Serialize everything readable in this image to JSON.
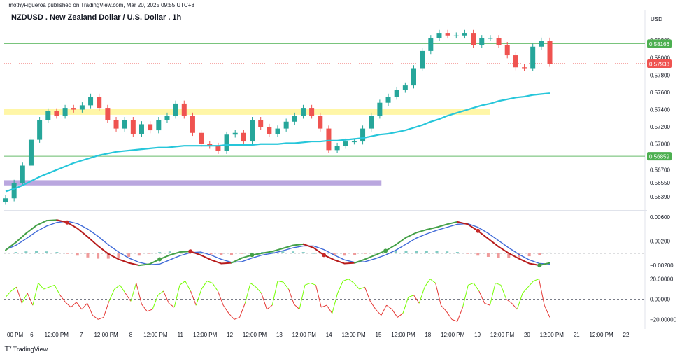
{
  "header": {
    "published": "TimothyFigueroa published on TradingView.com, Mar 20, 2025 09:55 UTC+8",
    "title": "NZDUSD . New Zealand Dollar / U.S. Dollar . 1h",
    "currency": "USD"
  },
  "footer": {
    "brand": "TradingView",
    "logo_icon": "tradingview-logo-icon"
  },
  "colors": {
    "up": "#26a69a",
    "down": "#ef5350",
    "ma": "#26c6da",
    "level": "#66bb6a",
    "zone_yellow": "#fff59d",
    "zone_purple": "#b39ddb",
    "osc_fast": "#43a047",
    "osc_fast_down": "#b71c1c",
    "osc_slow": "#3f6ad8",
    "rsi_up": "#76ff03",
    "rsi_down": "#e53935"
  },
  "chart_data": [
    {
      "type": "line",
      "name": "price",
      "x_labels": [
        "00 PM",
        "6",
        "12:00 PM",
        "7",
        "12:00 PM",
        "8",
        "12:00 PM",
        "11",
        "12:00 PM",
        "12",
        "12:00 PM",
        "13",
        "12:00 PM",
        "14",
        "12:00 PM",
        "15",
        "12:00 PM",
        "18",
        "12:00 PM",
        "19",
        "12:00 PM",
        "20",
        "12:00 PM",
        "21",
        "12:00 PM",
        "22"
      ],
      "y_ticks": [
        0.5639,
        0.5655,
        0.567,
        0.57,
        0.572,
        0.574,
        0.576,
        0.578,
        0.58,
        0.582
      ],
      "y_tick_labels": [
        "0.56390",
        "0.56550",
        "0.56700",
        "0.57000",
        "0.57200",
        "0.57400",
        "0.57600",
        "0.57800",
        "0.58000",
        "0.58200"
      ],
      "ylim": [
        0.5625,
        0.5838
      ],
      "close": [
        0.5637,
        0.5655,
        0.5675,
        0.5705,
        0.5728,
        0.5738,
        0.5733,
        0.5742,
        0.574,
        0.5745,
        0.5755,
        0.5742,
        0.5728,
        0.5718,
        0.5728,
        0.5712,
        0.5723,
        0.5716,
        0.5728,
        0.5733,
        0.5747,
        0.5733,
        0.5713,
        0.57,
        0.5698,
        0.5692,
        0.5711,
        0.5713,
        0.5703,
        0.5728,
        0.572,
        0.5712,
        0.5718,
        0.5726,
        0.5733,
        0.5742,
        0.5733,
        0.5718,
        0.5693,
        0.5698,
        0.5703,
        0.5703,
        0.5718,
        0.5733,
        0.5748,
        0.5755,
        0.5763,
        0.5768,
        0.5788,
        0.5808,
        0.5823,
        0.5829,
        0.5826,
        0.5826,
        0.5829,
        0.5815,
        0.5823,
        0.5823,
        0.5815,
        0.5803,
        0.5789,
        0.5788,
        0.5813,
        0.582,
        0.5793
      ],
      "ma": [
        0.5645,
        0.5648,
        0.5652,
        0.5657,
        0.5662,
        0.5666,
        0.567,
        0.5674,
        0.5678,
        0.5681,
        0.5684,
        0.5687,
        0.5689,
        0.5691,
        0.5692,
        0.5693,
        0.5694,
        0.5695,
        0.5696,
        0.5696,
        0.5697,
        0.5698,
        0.5698,
        0.5698,
        0.5698,
        0.5698,
        0.5699,
        0.5699,
        0.5699,
        0.5699,
        0.57,
        0.57,
        0.57,
        0.5701,
        0.5701,
        0.5702,
        0.5703,
        0.5703,
        0.5704,
        0.5704,
        0.5705,
        0.5706,
        0.5707,
        0.5709,
        0.5711,
        0.5712,
        0.5714,
        0.5716,
        0.5719,
        0.5722,
        0.5726,
        0.5729,
        0.5733,
        0.5736,
        0.5739,
        0.5742,
        0.5745,
        0.5747,
        0.575,
        0.5752,
        0.5754,
        0.5755,
        0.5757,
        0.5758,
        0.5759
      ],
      "levels": [
        {
          "value": 0.58166,
          "label": "0.58166",
          "color": "#66bb6a"
        },
        {
          "value": 0.56859,
          "label": "0.56859",
          "color": "#66bb6a"
        }
      ],
      "last_price": {
        "value": 0.57933,
        "label": "0.57933",
        "color": "#ef5350"
      },
      "zones": [
        {
          "name": "resistance-zone",
          "from": 0.5734,
          "to": 0.5741,
          "start": 0,
          "end": 0.76,
          "color": "#fff59d"
        },
        {
          "name": "support-zone",
          "from": 0.5652,
          "to": 0.5658,
          "start": 0,
          "end": 0.59,
          "color": "#b39ddb"
        }
      ]
    },
    {
      "type": "line",
      "name": "oscillator",
      "y_ticks": [
        0.006,
        0.002,
        -0.002
      ],
      "y_tick_labels": [
        "0.00600",
        "0.00200",
        "−0.00200"
      ],
      "ylim": [
        -0.0028,
        0.0068
      ],
      "fast": [
        0.0005,
        0.0018,
        0.0033,
        0.0046,
        0.0054,
        0.0055,
        0.0051,
        0.0041,
        0.0027,
        0.0012,
        -0.0001,
        -0.001,
        -0.0016,
        -0.002,
        -0.0018,
        -0.001,
        -0.0003,
        0.0002,
        0.0003,
        -0.0003,
        -0.0011,
        -0.0017,
        -0.0016,
        -0.0008,
        -0.0003,
        0.0,
        0.0003,
        0.0008,
        0.0013,
        0.0015,
        0.0009,
        -0.0003,
        -0.0011,
        -0.0017,
        -0.0016,
        -0.001,
        -0.0003,
        0.0004,
        0.0014,
        0.0026,
        0.0034,
        0.0039,
        0.0043,
        0.0048,
        0.0052,
        0.0048,
        0.0037,
        0.0024,
        0.0011,
        0.0,
        -0.0009,
        -0.0017,
        -0.002,
        -0.0016
      ],
      "slow": [
        0.0006,
        0.0013,
        0.0024,
        0.0036,
        0.0045,
        0.0051,
        0.0053,
        0.0049,
        0.004,
        0.0028,
        0.0014,
        0.0002,
        -0.0008,
        -0.0015,
        -0.0019,
        -0.0018,
        -0.0011,
        -0.0004,
        0.0001,
        0.0002,
        -0.0003,
        -0.001,
        -0.0015,
        -0.0014,
        -0.0008,
        -0.0003,
        0.0,
        0.0004,
        0.0009,
        0.0012,
        0.0012,
        0.0006,
        -0.0003,
        -0.0011,
        -0.0015,
        -0.0014,
        -0.0009,
        -0.0003,
        0.0005,
        0.0015,
        0.0025,
        0.0032,
        0.0038,
        0.0043,
        0.0048,
        0.0049,
        0.0043,
        0.0033,
        0.0021,
        0.0009,
        -0.0002,
        -0.0011,
        -0.0017,
        -0.0018
      ],
      "hist": [
        0.0001,
        0.0002,
        0.0003,
        0.0004,
        0.0003,
        0.0002,
        -0.0001,
        -0.0004,
        -0.0007,
        -0.0009,
        -0.0009,
        -0.0008,
        -0.0006,
        -0.0004,
        -0.0001,
        0.0002,
        0.0003,
        0.0003,
        0.0002,
        0.0,
        -0.0002,
        -0.0003,
        -0.0003,
        -0.0001,
        0.0001,
        0.0002,
        0.0002,
        0.0003,
        0.0003,
        0.0002,
        0.0,
        -0.0002,
        -0.0003,
        -0.0004,
        -0.0003,
        -0.0001,
        0.0001,
        0.0003,
        0.0004,
        0.0004,
        0.0004,
        0.0004,
        0.0004,
        0.0003,
        0.0002,
        -0.0001,
        -0.0004,
        -0.0006,
        -0.0008,
        -0.0008,
        -0.0007,
        -0.0005,
        -0.0003,
        0.0001
      ],
      "cross_down": [
        6,
        18,
        31,
        46
      ],
      "cross_up": [
        15,
        24,
        37,
        52
      ]
    },
    {
      "type": "line",
      "name": "rsi-oscillator",
      "y_ticks": [
        20,
        0,
        -20
      ],
      "y_tick_labels": [
        "20.00000",
        "0.00000",
        "−20.00000"
      ],
      "ylim": [
        -26,
        26
      ],
      "values": [
        2,
        8,
        12,
        -4,
        6,
        -6,
        16,
        10,
        12,
        14,
        4,
        -3,
        -8,
        -3,
        -10,
        -4,
        -16,
        -20,
        -18,
        -2,
        10,
        14,
        6,
        -2,
        16,
        -5,
        -12,
        -10,
        4,
        8,
        -4,
        -8,
        14,
        18,
        8,
        -6,
        10,
        18,
        16,
        8,
        -6,
        -14,
        -20,
        -18,
        -4,
        16,
        12,
        6,
        -10,
        -6,
        18,
        17,
        10,
        -5,
        -10,
        14,
        16,
        14,
        -8,
        -6,
        -14,
        6,
        18,
        20,
        16,
        10,
        12,
        -2,
        -10,
        -16,
        -6,
        -10,
        -18,
        -14,
        2,
        4,
        -4,
        12,
        20,
        16,
        -6,
        -12,
        -20,
        -22,
        -8,
        14,
        16,
        8,
        -4,
        -6,
        16,
        14,
        0,
        -4,
        -10,
        6,
        12,
        18,
        20,
        -6,
        -18
      ]
    }
  ]
}
